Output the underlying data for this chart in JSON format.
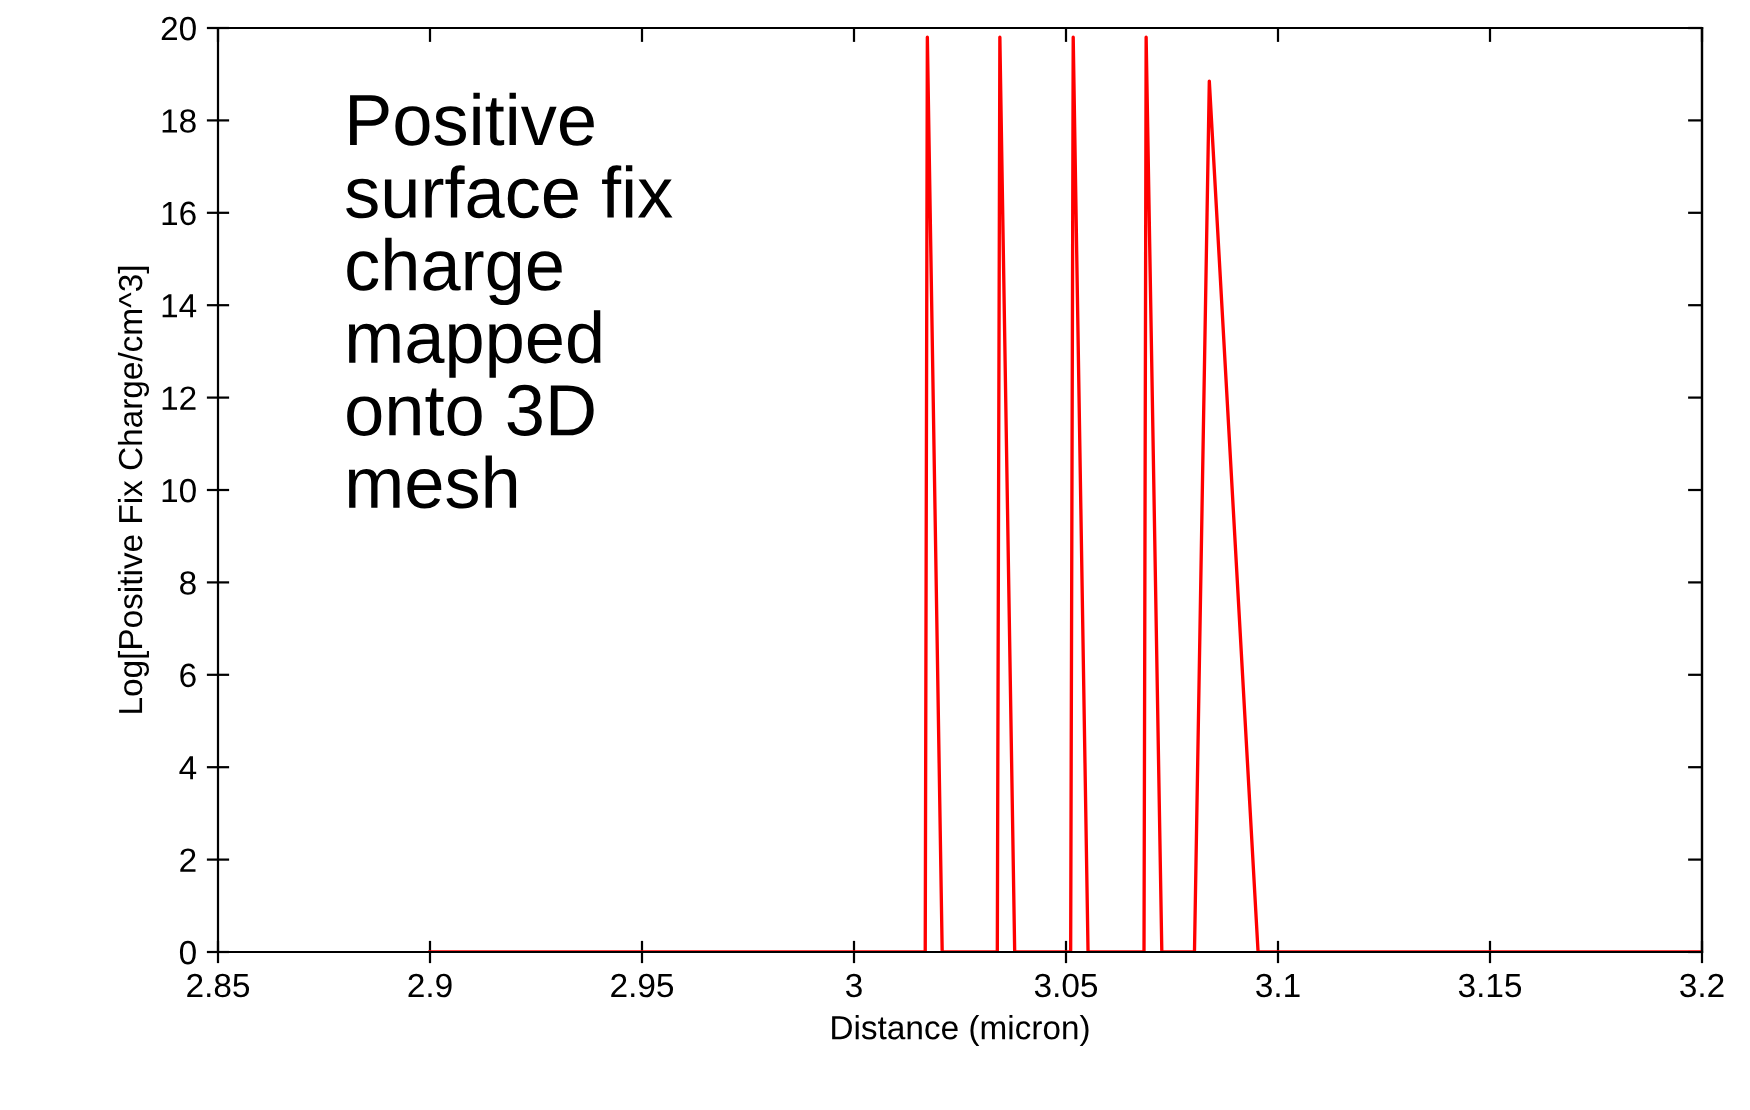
{
  "chart_data": {
    "type": "line",
    "xlabel": "Distance (micron)",
    "ylabel": "Log[Positive Fix Charge/cm^3]",
    "annotations": [
      "Positive\nsurface fix\ncharge\nmapped\nonto 3D\nmesh"
    ],
    "series": [
      {
        "color": "#ff0000",
        "x": [
          2.9,
          3.0168,
          3.0173,
          3.0208,
          3.0338,
          3.0344,
          3.0379,
          3.0511,
          3.0517,
          3.0552,
          3.0684,
          3.0689,
          3.0726,
          3.0803,
          3.0838,
          3.0953,
          3.2
        ],
        "values": [
          0,
          0,
          19.8,
          0,
          0,
          19.8,
          0,
          0,
          19.8,
          0,
          0,
          19.8,
          0,
          0,
          18.85,
          0,
          0
        ]
      }
    ],
    "xlim": [
      2.85,
      3.2
    ],
    "xticks": [
      2.85,
      2.9,
      2.95,
      3,
      3.05,
      3.1,
      3.15,
      3.2
    ],
    "ylim": [
      0,
      20
    ],
    "yticks": [
      0,
      2,
      4,
      6,
      8,
      10,
      12,
      14,
      16,
      18,
      20
    ],
    "grid": false,
    "legend": false,
    "marker": "none",
    "line_style": "solid"
  }
}
